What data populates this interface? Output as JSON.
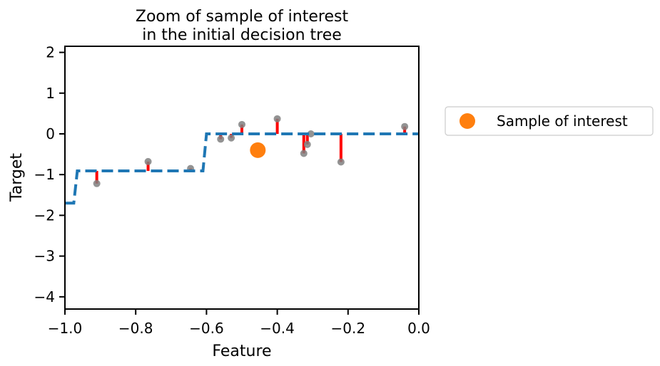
{
  "chart_data": {
    "type": "scatter",
    "title_line1": "Zoom of sample of interest",
    "title_line2": "in the initial decision tree",
    "xlabel": "Feature",
    "ylabel": "Target",
    "xlim": [
      -1.0,
      0.0
    ],
    "ylim": [
      -4.3,
      2.15
    ],
    "xticks": [
      -1.0,
      -0.8,
      -0.6,
      -0.4,
      -0.2,
      0.0
    ],
    "xtick_labels": [
      "−1.0",
      "−0.8",
      "−0.6",
      "−0.4",
      "−0.2",
      "0.0"
    ],
    "yticks": [
      -4,
      -3,
      -2,
      -1,
      0,
      1,
      2
    ],
    "ytick_labels": [
      "−4",
      "−3",
      "−2",
      "−1",
      "0",
      "1",
      "2"
    ],
    "tree_prediction": {
      "x": [
        -1.0,
        -0.975,
        -0.965,
        -0.61,
        -0.6,
        0.0
      ],
      "y": [
        -1.7,
        -1.7,
        -0.91,
        -0.91,
        0.0,
        0.0
      ],
      "color": "#1f77b4",
      "style": "dashed"
    },
    "samples": {
      "color": "#808080",
      "x": [
        -0.91,
        -0.765,
        -0.645,
        -0.56,
        -0.53,
        -0.5,
        -0.4,
        -0.325,
        -0.315,
        -0.305,
        -0.22,
        -0.04
      ],
      "y": [
        -1.22,
        -0.68,
        -0.85,
        -0.13,
        -0.1,
        0.23,
        0.37,
        -0.48,
        -0.26,
        0.0,
        -0.69,
        0.18
      ]
    },
    "residuals": {
      "color": "#ff0000",
      "description": "vertical segment from each sample to the tree prediction"
    },
    "sample_of_interest": {
      "x": -0.455,
      "y": -0.4,
      "color": "#ff7f0e",
      "label": "Sample of interest"
    },
    "legend": {
      "placement": "outside-right",
      "entries": [
        "Sample of interest"
      ]
    },
    "grid": false
  }
}
